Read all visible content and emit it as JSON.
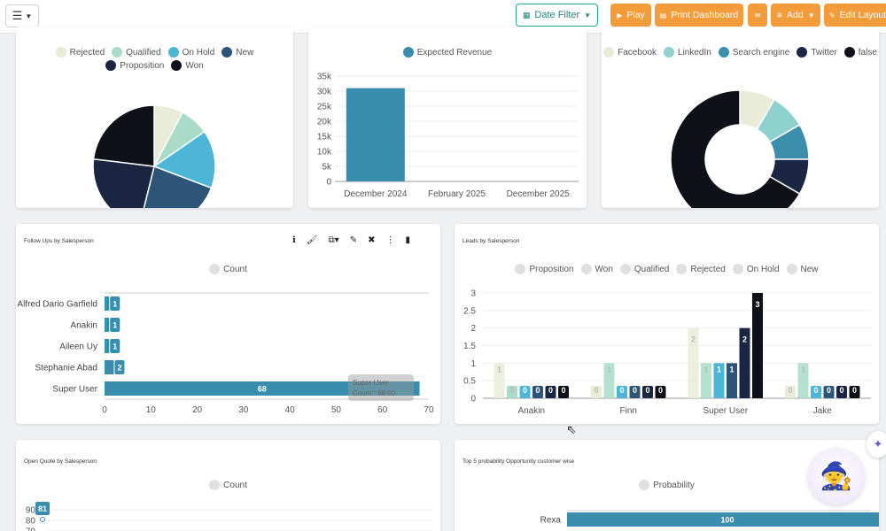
{
  "colors": {
    "accent_orange": "#f39c3c",
    "teal": "#26a69a",
    "bar_blue": "#3a8ead",
    "legend_grey": "#e0e0e0"
  },
  "topbar": {
    "menu_icon": "sliders-icon",
    "date_filter": "Date Filter",
    "play": "Play",
    "print": "Print Dashboard",
    "mail_icon": "envelope-icon",
    "add": "Add",
    "edit": "Edit Layout"
  },
  "charts": {
    "status_pie": {
      "legend": [
        {
          "label": "Rejected",
          "color": "#e8ecd7"
        },
        {
          "label": "Qualified",
          "color": "#a8dcc8"
        },
        {
          "label": "On Hold",
          "color": "#4db5d5"
        },
        {
          "label": "New",
          "color": "#2d5577"
        },
        {
          "label": "Proposition",
          "color": "#1b2742"
        },
        {
          "label": "Won",
          "color": "#0e1118"
        }
      ]
    },
    "revenue": {
      "legend": "Expected Revenue"
    },
    "source_donut": {
      "legend": [
        {
          "label": "Facebook",
          "color": "#e8ecd7"
        },
        {
          "label": "LinkedIn",
          "color": "#8fd1cf"
        },
        {
          "label": "Search engine",
          "color": "#3b8fad"
        },
        {
          "label": "Twitter",
          "color": "#1b2742"
        },
        {
          "label": "false",
          "color": "#0e1118"
        }
      ]
    },
    "followups": {
      "title": "Follow Ups by Salesperson",
      "legend": "Count",
      "tooltip_line1": "Super User",
      "tooltip_line2": "Count : 68.00"
    },
    "leads": {
      "title": "Leads by Salesperson",
      "legend": [
        "Proposition",
        "Won",
        "Qualified",
        "Rejected",
        "On Hold",
        "New"
      ]
    },
    "openquote": {
      "title": "Open Quote by Salesperson",
      "legend": "Count"
    },
    "top5": {
      "title": "Top 5 probability Opportunity customer wise",
      "legend": "Probability"
    }
  },
  "chart_data": [
    {
      "type": "pie",
      "categories": [
        "Rejected",
        "Qualified",
        "On Hold",
        "New",
        "Proposition",
        "Won"
      ],
      "values": [
        1,
        1,
        2,
        3,
        3,
        3
      ]
    },
    {
      "type": "bar",
      "series": [
        {
          "name": "Expected Revenue",
          "values": [
            31000,
            0,
            0
          ]
        }
      ],
      "categories": [
        "December 2024",
        "February 2025",
        "December 2025"
      ],
      "ylim": [
        0,
        35000
      ],
      "yticks": [
        "0",
        "5k",
        "10k",
        "15k",
        "20k",
        "25k",
        "30k",
        "35k"
      ]
    },
    {
      "type": "pie",
      "categories": [
        "Facebook",
        "LinkedIn",
        "Search engine",
        "Twitter",
        "false"
      ],
      "values": [
        1,
        1,
        1,
        1,
        8
      ]
    },
    {
      "type": "bar",
      "orientation": "horizontal",
      "series": [
        {
          "name": "Count",
          "values": [
            1,
            1,
            1,
            2,
            68
          ]
        }
      ],
      "categories": [
        "Alfred Dario Garfield",
        "Anakin",
        "Aileen Uy",
        "Stephanie Abad",
        "Super User"
      ],
      "xlim": [
        0,
        70
      ],
      "xticks": [
        "0",
        "10",
        "20",
        "30",
        "40",
        "50",
        "60",
        "70"
      ]
    },
    {
      "type": "bar",
      "categories": [
        "Anakin",
        "Finn",
        "Super User",
        "Jake"
      ],
      "ylim": [
        0,
        3
      ],
      "yticks": [
        "0",
        "0.5",
        "1",
        "1.5",
        "2",
        "2.5",
        "3"
      ],
      "series": [
        {
          "name": "Proposition",
          "values": [
            1,
            0,
            2,
            0
          ]
        },
        {
          "name": "Won",
          "values": [
            0,
            1,
            1,
            1
          ]
        },
        {
          "name": "Qualified",
          "values": [
            0,
            0,
            1,
            0
          ]
        },
        {
          "name": "Rejected",
          "values": [
            0,
            0,
            1,
            0
          ]
        },
        {
          "name": "On Hold",
          "values": [
            0,
            0,
            2,
            0
          ]
        },
        {
          "name": "New",
          "values": [
            0,
            0,
            3,
            0
          ]
        }
      ]
    },
    {
      "type": "line",
      "series": [
        {
          "name": "Count",
          "values": [
            81
          ]
        }
      ],
      "yticks": [
        "90",
        "80",
        "70"
      ]
    },
    {
      "type": "bar",
      "orientation": "horizontal",
      "series": [
        {
          "name": "Probability",
          "values": [
            100
          ]
        }
      ],
      "categories": [
        "Rexa"
      ]
    }
  ]
}
